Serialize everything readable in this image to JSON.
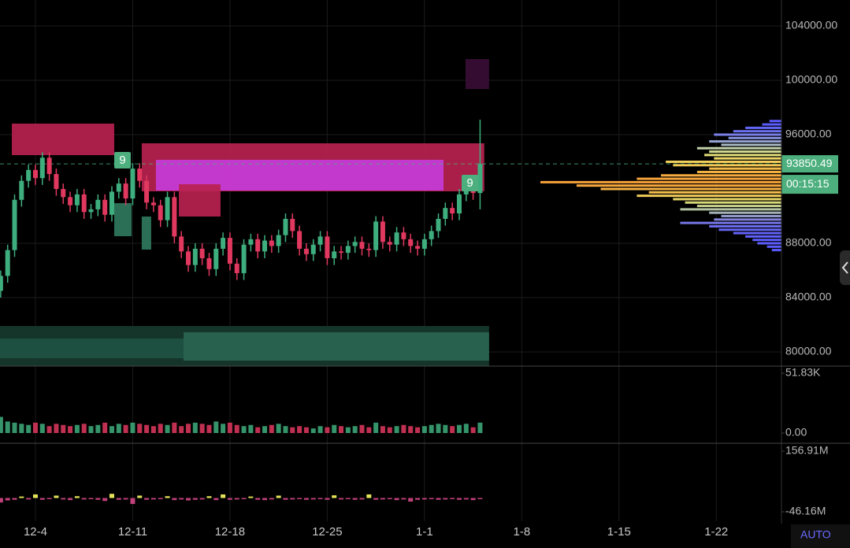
{
  "chart_data": {
    "type": "candlestick",
    "up_color": "#3fae7e",
    "down_color": "#e0385f",
    "xlim": [
      -2.55,
      53.69
    ],
    "xticks": [
      {
        "value": 0,
        "label": "12-4"
      },
      {
        "value": 7,
        "label": "12-11"
      },
      {
        "value": 14,
        "label": "12-18"
      },
      {
        "value": 21,
        "label": "12-25"
      },
      {
        "value": 28,
        "label": "1-1"
      },
      {
        "value": 35,
        "label": "1-8"
      },
      {
        "value": 42,
        "label": "1-15"
      },
      {
        "value": 49,
        "label": "1-22"
      }
    ],
    "ylim": [
      78957,
      105913
    ],
    "yticks": [
      {
        "value": 104000,
        "label": "104000.00"
      },
      {
        "value": 100000,
        "label": "100000.00"
      },
      {
        "value": 96000,
        "label": "96000.00"
      },
      {
        "value": 88000,
        "label": "88000.00"
      },
      {
        "value": 84000,
        "label": "84000.00"
      },
      {
        "value": 80000,
        "label": "80000.00"
      }
    ],
    "grid": true,
    "x": [
      -2.5,
      -2,
      -1.5,
      -1,
      -0.5,
      0,
      0.5,
      1,
      1.5,
      2,
      2.5,
      3,
      3.5,
      4,
      4.5,
      5,
      5.5,
      6,
      6.5,
      7,
      7.5,
      8,
      8.5,
      9,
      9.5,
      10,
      10.5,
      11,
      11.5,
      12,
      12.5,
      13,
      13.5,
      14,
      14.5,
      15,
      15.5,
      16,
      16.5,
      17,
      17.5,
      18,
      18.5,
      19,
      19.5,
      20,
      20.5,
      21,
      21.5,
      22,
      22.5,
      23,
      23.5,
      24,
      24.5,
      25,
      25.5,
      26,
      26.5,
      27,
      27.5,
      28,
      28.5,
      29,
      29.5,
      30,
      30.5,
      31,
      31.5,
      32
    ],
    "open": [
      84500,
      85600,
      87500,
      91200,
      92600,
      93400,
      92800,
      94300,
      93100,
      92000,
      91400,
      90800,
      91600,
      90300,
      90500,
      91200,
      90100,
      91800,
      92400,
      91300,
      93500,
      92600,
      91000,
      90800,
      89700,
      91400,
      88500,
      87400,
      86400,
      87600,
      86900,
      86100,
      87600,
      88400,
      86500,
      85800,
      87900,
      88300,
      87400,
      88200,
      87800,
      88600,
      89800,
      88900,
      87600,
      87200,
      87900,
      88500,
      86900,
      87400,
      87300,
      87800,
      88100,
      87600,
      87500,
      89600,
      88100,
      87900,
      88800,
      88300,
      87800,
      87600,
      88300,
      88900,
      89800,
      90600,
      90200,
      91600,
      92000,
      91700
    ],
    "high": [
      86000,
      87900,
      91600,
      93000,
      93800,
      93800,
      94700,
      94700,
      93500,
      92400,
      91800,
      92000,
      92000,
      90900,
      91600,
      91600,
      92200,
      92800,
      92800,
      93900,
      93900,
      93000,
      91400,
      91200,
      91800,
      91800,
      88900,
      87800,
      88000,
      88000,
      87300,
      88000,
      88800,
      88800,
      86900,
      88300,
      88700,
      88700,
      88600,
      88600,
      89000,
      90200,
      90200,
      89300,
      88000,
      88300,
      88900,
      88900,
      87800,
      87800,
      88200,
      88500,
      88500,
      88000,
      90000,
      90000,
      88500,
      89200,
      89200,
      88700,
      88200,
      88700,
      89300,
      90200,
      91000,
      91000,
      92000,
      92400,
      92400,
      97100
    ],
    "low": [
      84000,
      85100,
      87000,
      90700,
      92100,
      92300,
      92300,
      92600,
      91500,
      90900,
      90300,
      90300,
      89800,
      89800,
      90000,
      89600,
      89600,
      91300,
      90800,
      90800,
      92100,
      90500,
      90300,
      89200,
      89200,
      88000,
      86900,
      85900,
      85900,
      86400,
      85600,
      85600,
      87100,
      86000,
      85300,
      85300,
      87400,
      86900,
      86900,
      87300,
      87300,
      88100,
      88400,
      87100,
      86700,
      86700,
      87400,
      86400,
      86400,
      86800,
      86800,
      87300,
      87100,
      87000,
      87000,
      87600,
      87400,
      87400,
      87800,
      87300,
      87100,
      87100,
      87800,
      88400,
      89300,
      89700,
      89700,
      91100,
      91200,
      90500
    ],
    "close": [
      85600,
      87500,
      91200,
      92600,
      93400,
      92800,
      94300,
      93100,
      92000,
      91400,
      90800,
      91600,
      90300,
      90500,
      91200,
      90100,
      91800,
      92400,
      91300,
      93500,
      92600,
      91000,
      90800,
      89700,
      91400,
      88500,
      87400,
      86400,
      87600,
      86900,
      86100,
      87600,
      88400,
      86500,
      85800,
      87900,
      88300,
      87400,
      88200,
      87800,
      88600,
      89800,
      88900,
      87600,
      87200,
      87900,
      88500,
      86900,
      87400,
      87300,
      87800,
      88100,
      87600,
      87500,
      89600,
      88100,
      87900,
      88800,
      88300,
      87800,
      87600,
      88300,
      88900,
      89800,
      90600,
      90200,
      91600,
      92000,
      91700,
      93850.49
    ],
    "last_price": 93850.49,
    "countdown": "00:15:15",
    "last_color": "#4caf7d",
    "zones": [
      {
        "x": [
          -2.55,
          32.65
        ],
        "y": [
          78957,
          81913
        ],
        "color": "#17382e"
      },
      {
        "x": [
          -2.55,
          10.66
        ],
        "y": [
          79536,
          80986
        ],
        "color": "#1f5343"
      },
      {
        "x": [
          10.66,
          32.65
        ],
        "y": [
          79362,
          81449
        ],
        "color": "#2a6550"
      },
      {
        "x": [
          -1.7,
          5.67
        ],
        "y": [
          94493,
          96812
        ],
        "color": "#b8224f"
      },
      {
        "x": [
          7.65,
          32.3
        ],
        "y": [
          91826,
          95362
        ],
        "color": "#b8224f"
      },
      {
        "x": [
          8.67,
          29.37
        ],
        "y": [
          91884,
          94145
        ],
        "color": "#c53bd9"
      },
      {
        "x": [
          10.32,
          13.32
        ],
        "y": [
          89971,
          92348
        ],
        "color": "#b8224f"
      },
      {
        "x": [
          30.95,
          32.65
        ],
        "y": [
          99362,
          101565
        ],
        "color": "#3a0d35"
      },
      {
        "x": [
          5.67,
          6.92
        ],
        "y": [
          88522,
          90957
        ],
        "color": "#2f7a5d"
      },
      {
        "x": [
          7.65,
          8.33
        ],
        "y": [
          87536,
          89971
        ],
        "color": "#2f7a5d"
      }
    ],
    "annotations": [
      "9",
      "9"
    ],
    "volume": {
      "ylim": [
        -8.87,
        57.97
      ],
      "yticks": [
        {
          "value": 51.83,
          "label": "51.83K"
        },
        {
          "value": 0,
          "label": "0.00"
        }
      ],
      "values": [
        14,
        10,
        9,
        8,
        7,
        9,
        8,
        6,
        8,
        7,
        6,
        7,
        8,
        6,
        7,
        9,
        6,
        8,
        7,
        9,
        8,
        7,
        6,
        8,
        7,
        9,
        6,
        8,
        9,
        8,
        7,
        10,
        8,
        9,
        7,
        6,
        7,
        5,
        6,
        7,
        8,
        6,
        5,
        6,
        5,
        4,
        6,
        5,
        7,
        6,
        5,
        6,
        7,
        5,
        9,
        6,
        5,
        6,
        7,
        6,
        5,
        6,
        7,
        8,
        7,
        6,
        7,
        8,
        5,
        9
      ]
    },
    "oscillator": {
      "ylim": [
        -72.5,
        183.3
      ],
      "yticks": [
        {
          "value": 156.91,
          "label": "156.91M"
        },
        {
          "value": -46.16,
          "label": "-46.16M"
        }
      ],
      "positive_color": "#e4e35a",
      "negative_color": "#c0407a",
      "values": [
        -15,
        -8,
        -6,
        5,
        -5,
        12,
        -6,
        -4,
        8,
        -5,
        -7,
        6,
        -5,
        -4,
        -6,
        -10,
        14,
        -6,
        -5,
        -20,
        8,
        -6,
        -5,
        -4,
        6,
        -7,
        -5,
        -8,
        -6,
        -5,
        6,
        -7,
        12,
        -6,
        -5,
        -4,
        5,
        -6,
        -7,
        -5,
        8,
        -6,
        -5,
        -4,
        -6,
        -5,
        -4,
        -6,
        9,
        -5,
        -4,
        -6,
        -5,
        12,
        -6,
        -5,
        -4,
        -7,
        -5,
        -12,
        -6,
        -5,
        -4,
        -6,
        -5,
        -4,
        -6,
        -5,
        -7,
        -4
      ]
    },
    "volume_profile": {
      "prices": [
        97000,
        96750,
        96500,
        96250,
        96000,
        95750,
        95500,
        95250,
        95000,
        94750,
        94500,
        94250,
        94000,
        93750,
        93500,
        93250,
        93000,
        92750,
        92500,
        92250,
        92000,
        91750,
        91500,
        91250,
        91000,
        90750,
        90500,
        90250,
        90000,
        89750,
        89500,
        89250,
        89000,
        88750,
        88500,
        88250,
        88000,
        87750,
        87500
      ],
      "values": [
        5,
        8,
        15,
        20,
        28,
        22,
        30,
        25,
        35,
        30,
        32,
        28,
        48,
        45,
        30,
        35,
        50,
        60,
        100,
        85,
        75,
        55,
        60,
        45,
        40,
        35,
        42,
        30,
        25,
        28,
        42,
        30,
        26,
        20,
        15,
        12,
        10,
        6,
        4
      ],
      "colors": [
        "#5a5cff",
        "#5a5cff",
        "#6266f5",
        "#6a70ee",
        "#7a80e8",
        "#8690e0",
        "#96a3d4",
        "#a9b8c2",
        "#c0cfa8",
        "#d2da90",
        "#e2de78",
        "#ecd868",
        "#f2cf5a",
        "#f4c650",
        "#f5bd48",
        "#f6b443",
        "#f7ab3e",
        "#f7a53b",
        "#f8a238",
        "#f8a83c",
        "#f7b042",
        "#f4bd4c",
        "#eecb58",
        "#e4d466",
        "#d6d878",
        "#c6d28c",
        "#b4c4a2",
        "#a2b2b8",
        "#9099cc",
        "#8284dc",
        "#7676e8",
        "#6c6cf0",
        "#6666f5",
        "#6262f8",
        "#5f60fa",
        "#5d5efc",
        "#5c5dfd",
        "#5b5cfe",
        "#5a5bff"
      ]
    },
    "auto_label": "AUTO"
  }
}
